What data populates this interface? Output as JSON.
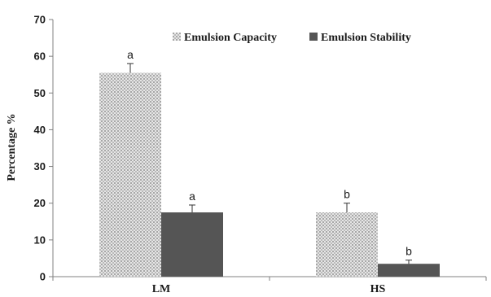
{
  "chart_data": {
    "type": "bar",
    "title": "",
    "xlabel": "",
    "ylabel": "Percentage %",
    "ylim": [
      0,
      70
    ],
    "yticks": [
      0,
      10,
      20,
      30,
      40,
      50,
      60,
      70
    ],
    "grid": false,
    "legend_position": "top-right",
    "categories": [
      "LM",
      "HS"
    ],
    "series": [
      {
        "name": "Emulsion Capacity",
        "pattern": "dotted-gray",
        "color": "#bdbdbd",
        "values": [
          55.5,
          17.5
        ],
        "errors": [
          2.5,
          2.5
        ],
        "labels": [
          "a",
          "b"
        ]
      },
      {
        "name": "Emulsion Stability",
        "pattern": "solid",
        "color": "#555555",
        "values": [
          17.5,
          3.5
        ],
        "errors": [
          2.0,
          1.0
        ],
        "labels": [
          "a",
          "b"
        ]
      }
    ]
  }
}
